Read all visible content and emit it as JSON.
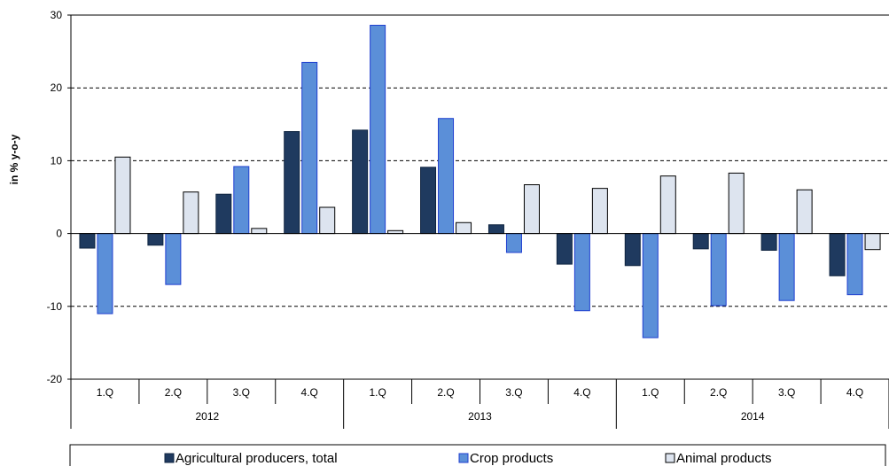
{
  "chart_data": {
    "type": "bar",
    "ylabel": "in % y-o-y",
    "ylim": [
      -20,
      30
    ],
    "yticks": [
      -20,
      -10,
      0,
      10,
      20,
      30
    ],
    "grid": true,
    "legend_position": "bottom",
    "categories": [
      "1.Q",
      "2.Q",
      "3.Q",
      "4.Q",
      "1.Q",
      "2.Q",
      "3.Q",
      "4.Q",
      "1.Q",
      "2.Q",
      "3.Q",
      "4.Q"
    ],
    "years": [
      {
        "label": "2012",
        "span": 4
      },
      {
        "label": "2013",
        "span": 4
      },
      {
        "label": "2014",
        "span": 4
      }
    ],
    "series": [
      {
        "name": "Agricultural producers, total",
        "color": "#1f3a5f",
        "stroke": "#0f2440",
        "values": [
          -2.0,
          -1.6,
          5.4,
          14.0,
          14.2,
          9.1,
          1.2,
          -4.2,
          -4.4,
          -2.1,
          -2.3,
          -5.8
        ]
      },
      {
        "name": "Crop products",
        "color": "#5b8fd8",
        "stroke": "#1f3fd0",
        "values": [
          -11.0,
          -7.0,
          9.2,
          23.5,
          28.6,
          15.8,
          -2.6,
          -10.6,
          -14.3,
          -9.9,
          -9.2,
          -8.4
        ]
      },
      {
        "name": "Animal products",
        "color": "#dde4ef",
        "stroke": "#000000",
        "values": [
          10.5,
          5.7,
          0.7,
          3.6,
          0.4,
          1.5,
          6.7,
          6.2,
          7.9,
          8.3,
          6.0,
          -2.2
        ]
      }
    ]
  }
}
